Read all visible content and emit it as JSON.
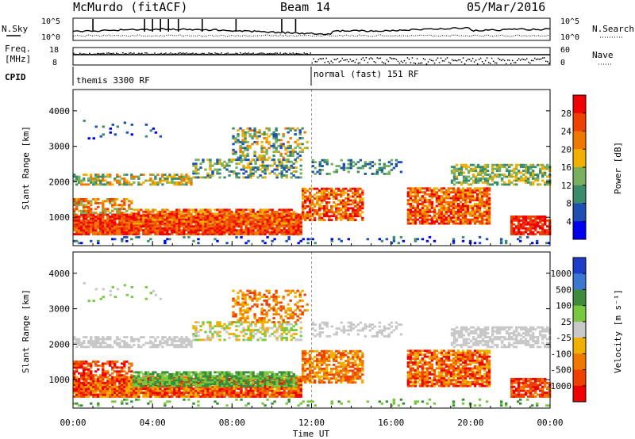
{
  "header": {
    "station": "McMurdo (fitACF)",
    "beam": "Beam 14",
    "date": "05/Mar/2016"
  },
  "status_panels": {
    "nsky_label": "N.Sky",
    "nsearch_label": "N.Search",
    "freq_label_top": "Freq.",
    "freq_label_bottom": "[MHz]",
    "nave_label": "Nave",
    "cpid_label": "CPID",
    "left_ticks_top": [
      "10^5",
      "10^0"
    ],
    "right_ticks_top": [
      "10^5",
      "10^0"
    ],
    "freq_ticks": [
      "18",
      "8"
    ],
    "nave_ticks": [
      "60",
      "0"
    ],
    "cpid_segments": [
      {
        "start_hour": 0,
        "label": "themis 3300 RF"
      },
      {
        "start_hour": 12,
        "label": "normal (fast) 151 RF"
      }
    ]
  },
  "chart_data": [
    {
      "type": "heatmap",
      "title": "",
      "ylabel": "Slant Range [km]",
      "xlabel": "",
      "x_range_hours": [
        0,
        24
      ],
      "ylim": [
        200,
        4600
      ],
      "yticks": [
        "1000",
        "2000",
        "3000",
        "4000"
      ],
      "colorbar": {
        "label": "Power [dB]",
        "ticks": [
          "28",
          "24",
          "20",
          "16",
          "12",
          "8",
          "4"
        ],
        "colors": [
          "#f00000",
          "#f04000",
          "#f07800",
          "#f0b000",
          "#78b060",
          "#3c8c6c",
          "#1e50b4",
          "#0000f0"
        ]
      }
    },
    {
      "type": "heatmap",
      "title": "",
      "ylabel": "Slant Range [km]",
      "xlabel": "Time UT",
      "x_range_hours": [
        0,
        24
      ],
      "ylim": [
        200,
        4600
      ],
      "yticks": [
        "1000",
        "2000",
        "3000",
        "4000"
      ],
      "xticks": [
        "00:00",
        "04:00",
        "08:00",
        "12:00",
        "16:00",
        "20:00",
        "00:00"
      ],
      "colorbar": {
        "label": "Velocity [m s⁻¹]",
        "ticks": [
          "1000",
          "500",
          "100",
          "25",
          "-25",
          "-100",
          "-500",
          "-1000"
        ],
        "colors": [
          "#1e3cc8",
          "#3c78d2",
          "#3c8c3c",
          "#78c840",
          "#c8c8c8",
          "#f0b000",
          "#f07800",
          "#f04000",
          "#f00000"
        ]
      }
    }
  ]
}
